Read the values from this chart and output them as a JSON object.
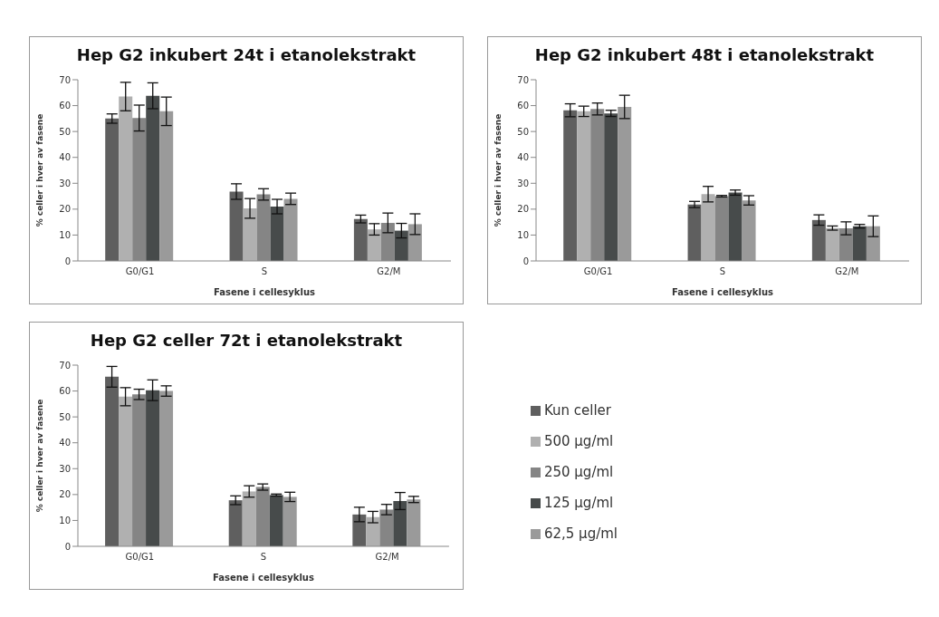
{
  "chart_data": [
    {
      "type": "bar",
      "title": "Hep G2 inkubert 24t i etanolekstrakt",
      "xlabel": "Fasene i cellesyklus",
      "ylabel": "% celler i hver av fasene",
      "categories": [
        "G0/G1",
        "S",
        "G2/M"
      ],
      "ylim": [
        0,
        70
      ],
      "yticks": [
        0,
        10,
        20,
        30,
        40,
        50,
        60,
        70
      ],
      "grid": false,
      "legend": false,
      "series": [
        {
          "color": "#5f5f5f",
          "values": [
            55,
            26.8,
            16.2
          ],
          "errors": [
            1.8,
            3,
            1.5
          ]
        },
        {
          "color": "#b0b0b0",
          "values": [
            63.5,
            20.3,
            12.2
          ],
          "errors": [
            5.5,
            3.8,
            2.2
          ]
        },
        {
          "color": "#858585",
          "values": [
            55.2,
            25.7,
            14.7
          ],
          "errors": [
            5,
            2.2,
            3.8
          ]
        },
        {
          "color": "#474b4b",
          "values": [
            63.8,
            21,
            11.7
          ],
          "errors": [
            5,
            2.8,
            2.8
          ]
        },
        {
          "color": "#9a9a9a",
          "values": [
            57.8,
            24,
            14.2
          ],
          "errors": [
            5.5,
            2.2,
            4
          ]
        }
      ]
    },
    {
      "type": "bar",
      "title": "Hep G2 inkubert 48t i etanolekstrakt",
      "xlabel": "Fasene i cellesyklus",
      "ylabel": "% celler i hver av fasene",
      "categories": [
        "G0/G1",
        "S",
        "G2/M"
      ],
      "ylim": [
        0,
        70
      ],
      "yticks": [
        0,
        10,
        20,
        30,
        40,
        50,
        60,
        70
      ],
      "grid": false,
      "legend": false,
      "series": [
        {
          "color": "#5f5f5f",
          "values": [
            58.2,
            21.8,
            15.8
          ],
          "errors": [
            2.5,
            1.2,
            2
          ]
        },
        {
          "color": "#b0b0b0",
          "values": [
            57.8,
            25.8,
            12.7
          ],
          "errors": [
            2,
            3,
            0.8
          ]
        },
        {
          "color": "#858585",
          "values": [
            58.7,
            25,
            12.6
          ],
          "errors": [
            2.3,
            0.3,
            2.5
          ]
        },
        {
          "color": "#474b4b",
          "values": [
            57,
            26.4,
            13.4
          ],
          "errors": [
            1.2,
            1,
            0.7
          ]
        },
        {
          "color": "#9a9a9a",
          "values": [
            59.5,
            23.4,
            13.4
          ],
          "errors": [
            4.5,
            1.8,
            4
          ]
        }
      ]
    },
    {
      "type": "bar",
      "title": "Hep G2 celler 72t i etanolekstrakt",
      "xlabel": "Fasene i cellesyklus",
      "ylabel": "% celler i hver av fasene",
      "categories": [
        "G0/G1",
        "S",
        "G2/M"
      ],
      "ylim": [
        0,
        70
      ],
      "yticks": [
        0,
        10,
        20,
        30,
        40,
        50,
        60,
        70
      ],
      "grid": false,
      "legend": "right",
      "series": [
        {
          "name": "Kun celler",
          "color": "#5f5f5f",
          "values": [
            65.5,
            17.8,
            12.3
          ],
          "errors": [
            4,
            1.7,
            2.8
          ]
        },
        {
          "name": "500 µg/ml",
          "color": "#b0b0b0",
          "values": [
            57.8,
            21.2,
            11.3
          ],
          "errors": [
            3.5,
            2.2,
            2.2
          ]
        },
        {
          "name": "250 µg/ml",
          "color": "#858585",
          "values": [
            58.7,
            22.9,
            14.2
          ],
          "errors": [
            2,
            1.2,
            2
          ]
        },
        {
          "name": "125 µg/ml",
          "color": "#474b4b",
          "values": [
            60.3,
            19.8,
            17.5
          ],
          "errors": [
            4,
            0.4,
            3.3
          ]
        },
        {
          "name": "62,5 µg/ml",
          "color": "#9a9a9a",
          "values": [
            60,
            19.1,
            18.1
          ],
          "errors": [
            2,
            1.8,
            1.2
          ]
        }
      ]
    }
  ]
}
